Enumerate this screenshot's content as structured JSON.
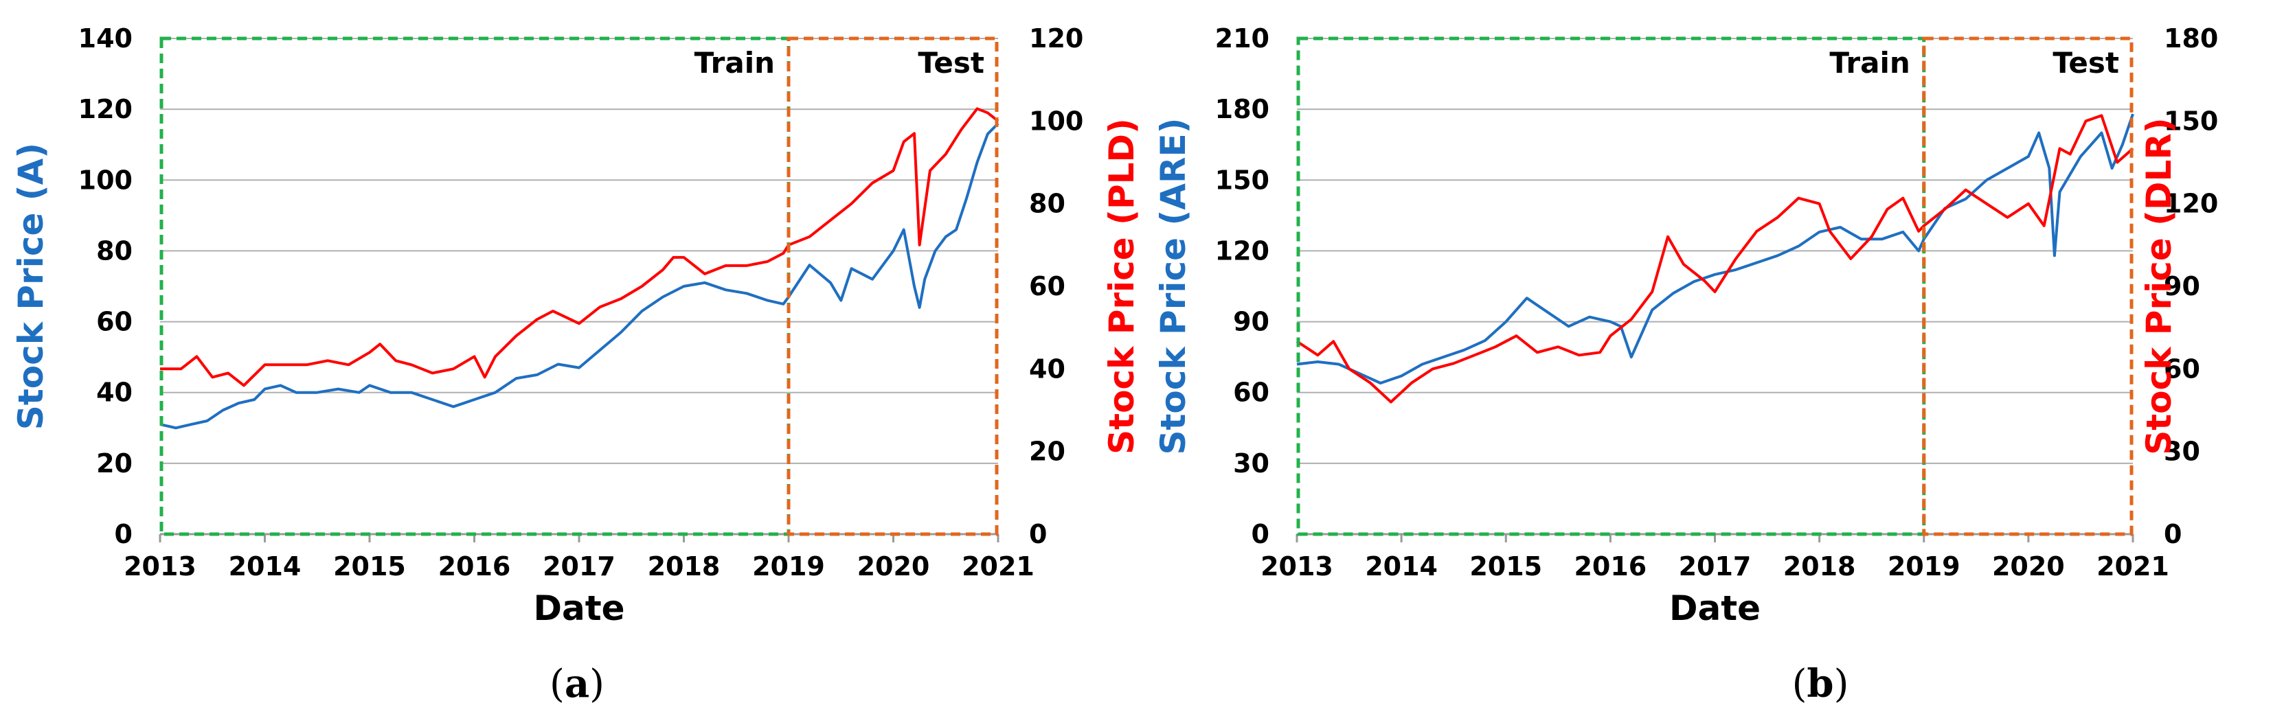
{
  "colors": {
    "left_series": "#1f6fc1",
    "right_series": "#ff0000",
    "train_box": "#22b14c",
    "test_box": "#e2671f",
    "grid": "#b0b0b0"
  },
  "panels": [
    {
      "label_open": "(",
      "label_letter": "a",
      "label_close": ")"
    },
    {
      "label_open": "(",
      "label_letter": "b",
      "label_close": ")"
    }
  ],
  "chart_data": [
    {
      "type": "line",
      "xlabel": "Date",
      "ylabel_prefix": "Stock Price ",
      "ylabel_ticker": "(A)",
      "y2label_prefix": "Stock Price ",
      "y2label_ticker": "(PLD)",
      "x_ticks": [
        "2013",
        "2014",
        "2015",
        "2016",
        "2017",
        "2018",
        "2019",
        "2020",
        "2021"
      ],
      "xlim": [
        2013,
        2021
      ],
      "ylim": [
        0,
        140
      ],
      "y_ticks": [
        0,
        20,
        40,
        60,
        80,
        100,
        120,
        140
      ],
      "y2lim": [
        0,
        120
      ],
      "y2_ticks": [
        0,
        20,
        40,
        60,
        80,
        100,
        120
      ],
      "grid": true,
      "regions": [
        {
          "name": "Train",
          "from": 2013,
          "to": 2019
        },
        {
          "name": "Test",
          "from": 2019,
          "to": 2021
        }
      ],
      "series": [
        {
          "name": "A",
          "axis": "left",
          "x": [
            2013.0,
            2013.15,
            2013.3,
            2013.45,
            2013.6,
            2013.75,
            2013.9,
            2014.0,
            2014.15,
            2014.3,
            2014.5,
            2014.7,
            2014.9,
            2015.0,
            2015.2,
            2015.4,
            2015.6,
            2015.8,
            2015.9,
            2016.0,
            2016.2,
            2016.4,
            2016.6,
            2016.8,
            2017.0,
            2017.2,
            2017.4,
            2017.6,
            2017.8,
            2018.0,
            2018.2,
            2018.4,
            2018.6,
            2018.8,
            2018.95,
            2019.0,
            2019.2,
            2019.4,
            2019.5,
            2019.6,
            2019.8,
            2020.0,
            2020.1,
            2020.2,
            2020.25,
            2020.3,
            2020.4,
            2020.5,
            2020.6,
            2020.7,
            2020.8,
            2020.9,
            2021.0
          ],
          "y": [
            31,
            30,
            31,
            32,
            35,
            37,
            38,
            41,
            42,
            40,
            40,
            41,
            40,
            42,
            40,
            40,
            38,
            36,
            37,
            38,
            40,
            44,
            45,
            48,
            47,
            52,
            57,
            63,
            67,
            70,
            71,
            69,
            68,
            66,
            65,
            67,
            76,
            71,
            66,
            75,
            72,
            80,
            86,
            70,
            64,
            72,
            80,
            84,
            86,
            95,
            105,
            113,
            116
          ]
        },
        {
          "name": "PLD",
          "axis": "right",
          "x": [
            2013.0,
            2013.2,
            2013.35,
            2013.5,
            2013.65,
            2013.8,
            2014.0,
            2014.2,
            2014.4,
            2014.6,
            2014.8,
            2015.0,
            2015.1,
            2015.25,
            2015.4,
            2015.6,
            2015.8,
            2016.0,
            2016.1,
            2016.2,
            2016.4,
            2016.6,
            2016.75,
            2017.0,
            2017.2,
            2017.4,
            2017.6,
            2017.8,
            2017.9,
            2018.0,
            2018.2,
            2018.4,
            2018.6,
            2018.8,
            2018.95,
            2019.0,
            2019.2,
            2019.4,
            2019.6,
            2019.8,
            2020.0,
            2020.1,
            2020.2,
            2020.25,
            2020.35,
            2020.5,
            2020.65,
            2020.8,
            2020.9,
            2021.0
          ],
          "y": [
            40,
            40,
            43,
            38,
            39,
            36,
            41,
            41,
            41,
            42,
            41,
            44,
            46,
            42,
            41,
            39,
            40,
            43,
            38,
            43,
            48,
            52,
            54,
            51,
            55,
            57,
            60,
            64,
            67,
            67,
            63,
            65,
            65,
            66,
            68,
            70,
            72,
            76,
            80,
            85,
            88,
            95,
            97,
            70,
            88,
            92,
            98,
            103,
            102,
            100
          ]
        }
      ]
    },
    {
      "type": "line",
      "xlabel": "Date",
      "ylabel_prefix": "Stock Price ",
      "ylabel_ticker": "(ARE)",
      "y2label_prefix": "Stock Price ",
      "y2label_ticker": "(DLR)",
      "x_ticks": [
        "2013",
        "2014",
        "2015",
        "2016",
        "2017",
        "2018",
        "2019",
        "2020",
        "2021"
      ],
      "xlim": [
        2013,
        2021
      ],
      "ylim": [
        0,
        210
      ],
      "y_ticks": [
        0,
        30,
        60,
        90,
        120,
        150,
        180,
        210
      ],
      "y2lim": [
        0,
        180
      ],
      "y2_ticks": [
        0,
        30,
        60,
        90,
        120,
        150,
        180
      ],
      "grid": true,
      "regions": [
        {
          "name": "Train",
          "from": 2013,
          "to": 2019
        },
        {
          "name": "Test",
          "from": 2019,
          "to": 2021
        }
      ],
      "series": [
        {
          "name": "ARE",
          "axis": "left",
          "x": [
            2013.0,
            2013.2,
            2013.4,
            2013.6,
            2013.8,
            2014.0,
            2014.2,
            2014.4,
            2014.6,
            2014.8,
            2015.0,
            2015.2,
            2015.4,
            2015.6,
            2015.8,
            2016.0,
            2016.1,
            2016.2,
            2016.4,
            2016.6,
            2016.8,
            2017.0,
            2017.2,
            2017.4,
            2017.6,
            2017.8,
            2018.0,
            2018.2,
            2018.4,
            2018.6,
            2018.8,
            2018.95,
            2019.0,
            2019.2,
            2019.4,
            2019.6,
            2019.8,
            2020.0,
            2020.1,
            2020.2,
            2020.25,
            2020.3,
            2020.5,
            2020.7,
            2020.8,
            2020.9,
            2021.0
          ],
          "y": [
            72,
            73,
            72,
            68,
            64,
            67,
            72,
            75,
            78,
            82,
            90,
            100,
            94,
            88,
            92,
            90,
            88,
            75,
            95,
            102,
            107,
            110,
            112,
            115,
            118,
            122,
            128,
            130,
            125,
            125,
            128,
            120,
            125,
            138,
            142,
            150,
            155,
            160,
            170,
            155,
            118,
            145,
            160,
            170,
            155,
            165,
            178
          ]
        },
        {
          "name": "DLR",
          "axis": "right",
          "x": [
            2013.0,
            2013.2,
            2013.35,
            2013.5,
            2013.7,
            2013.9,
            2014.1,
            2014.3,
            2014.5,
            2014.7,
            2014.9,
            2015.1,
            2015.3,
            2015.5,
            2015.7,
            2015.9,
            2016.0,
            2016.2,
            2016.4,
            2016.55,
            2016.7,
            2016.9,
            2017.0,
            2017.2,
            2017.4,
            2017.6,
            2017.8,
            2018.0,
            2018.1,
            2018.3,
            2018.5,
            2018.65,
            2018.8,
            2018.95,
            2019.0,
            2019.2,
            2019.4,
            2019.6,
            2019.8,
            2020.0,
            2020.15,
            2020.3,
            2020.4,
            2020.55,
            2020.7,
            2020.85,
            2021.0
          ],
          "y": [
            70,
            65,
            70,
            60,
            55,
            48,
            55,
            60,
            62,
            65,
            68,
            72,
            66,
            68,
            65,
            66,
            72,
            78,
            88,
            108,
            98,
            92,
            88,
            100,
            110,
            115,
            122,
            120,
            110,
            100,
            108,
            118,
            122,
            110,
            112,
            118,
            125,
            120,
            115,
            120,
            112,
            140,
            138,
            150,
            152,
            135,
            140
          ]
        }
      ]
    }
  ]
}
